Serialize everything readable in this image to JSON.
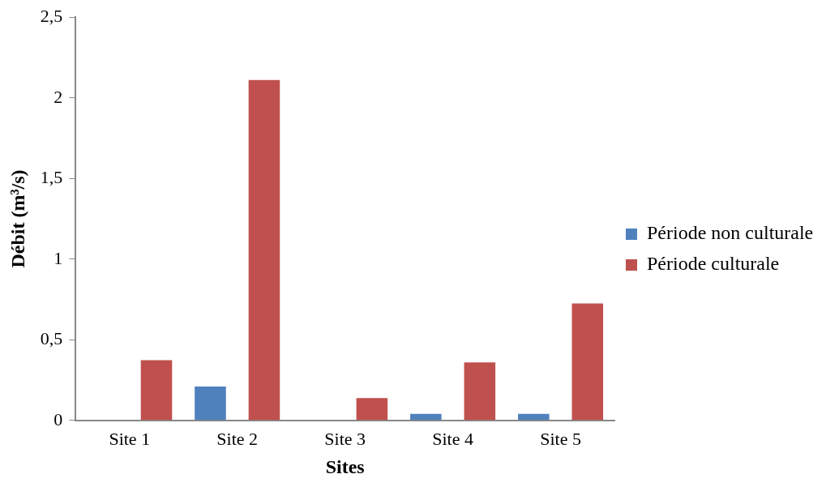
{
  "chart_data": {
    "type": "bar",
    "xlabel": "Sites",
    "ylabel": "Débit (m³/s)",
    "categories": [
      "Site 1",
      "Site 2",
      "Site 3",
      "Site 4",
      "Site 5"
    ],
    "series": [
      {
        "name": "Période non culturale",
        "color": "#4f81bd",
        "values": [
          0,
          0.21,
          0,
          0.04,
          0.04
        ]
      },
      {
        "name": "Période culturale",
        "color": "#c0504d",
        "values": [
          0.373,
          2.11,
          0.138,
          0.36,
          0.725
        ]
      }
    ],
    "ylim": [
      0,
      2.5
    ],
    "yticks": [
      0,
      {
        "value": 0.5,
        "label": "0,5"
      },
      1,
      {
        "value": 1.5,
        "label": "1,5"
      },
      2,
      {
        "value": 2.5,
        "label": "2,5"
      }
    ],
    "grid": false,
    "legend": "right"
  }
}
